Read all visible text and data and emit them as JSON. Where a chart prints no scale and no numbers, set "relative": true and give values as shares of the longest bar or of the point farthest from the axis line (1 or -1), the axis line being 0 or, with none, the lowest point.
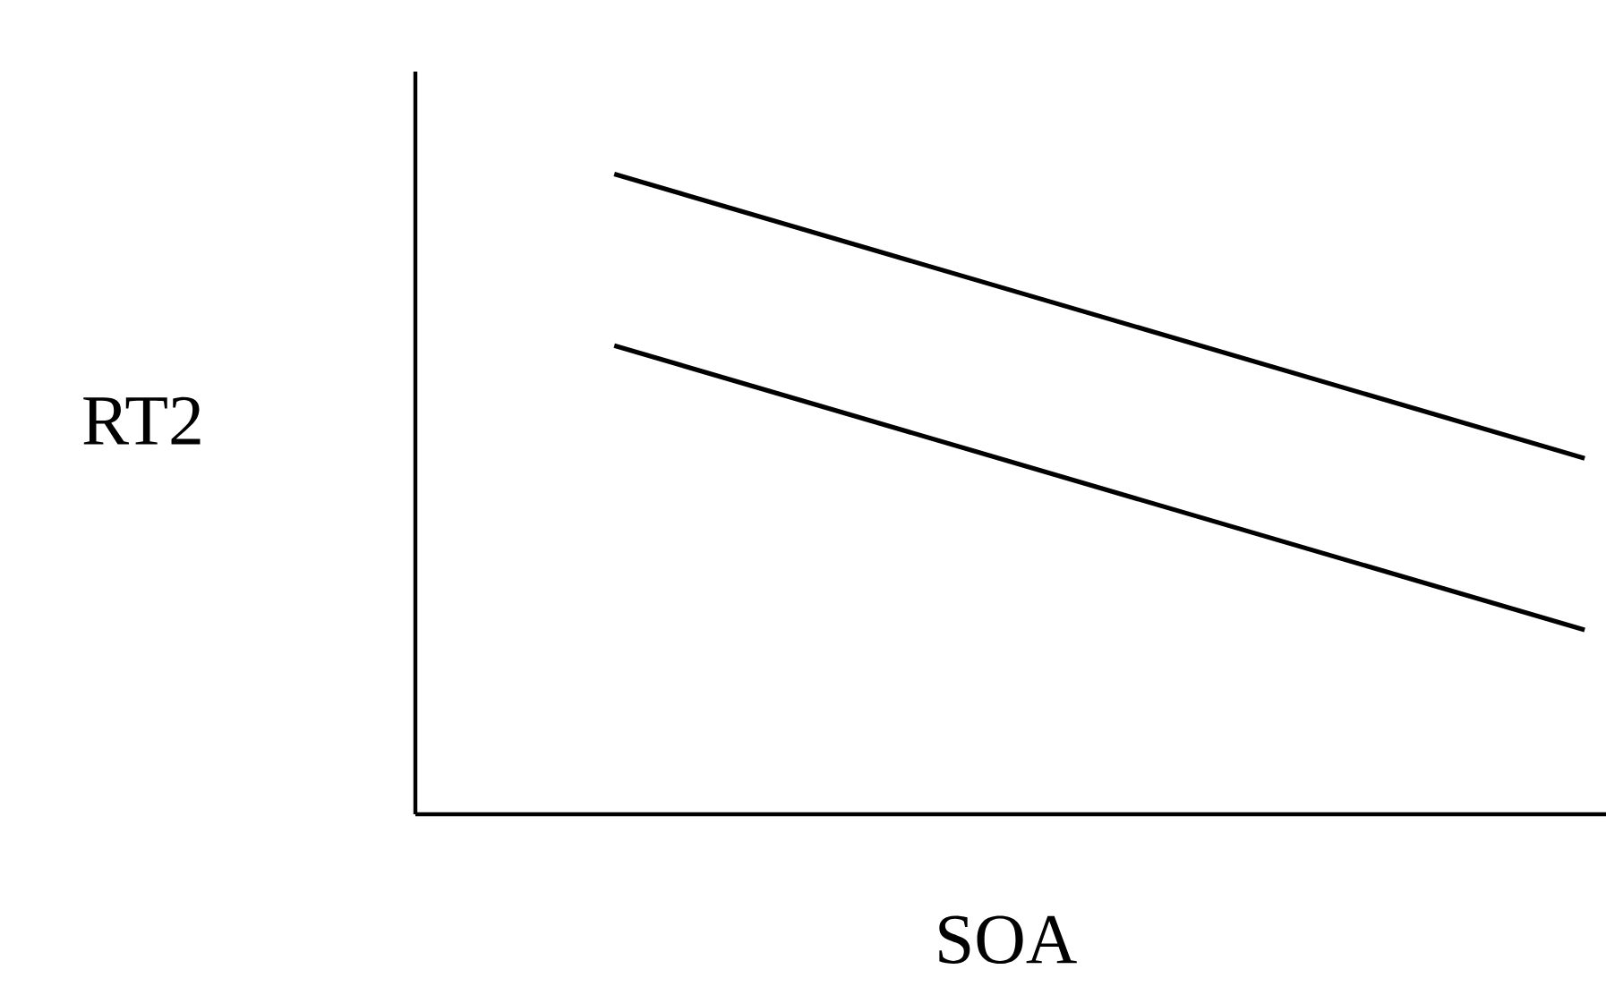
{
  "chart_data": {
    "type": "line",
    "relative": true,
    "xlabel": "SOA",
    "ylabel": "RT2",
    "categories": [
      null,
      null
    ],
    "series": [
      {
        "color": "#000000",
        "values": [
          1,
          0.556
        ]
      },
      {
        "color": "#000000",
        "values": [
          0.732,
          0.288
        ]
      }
    ]
  }
}
